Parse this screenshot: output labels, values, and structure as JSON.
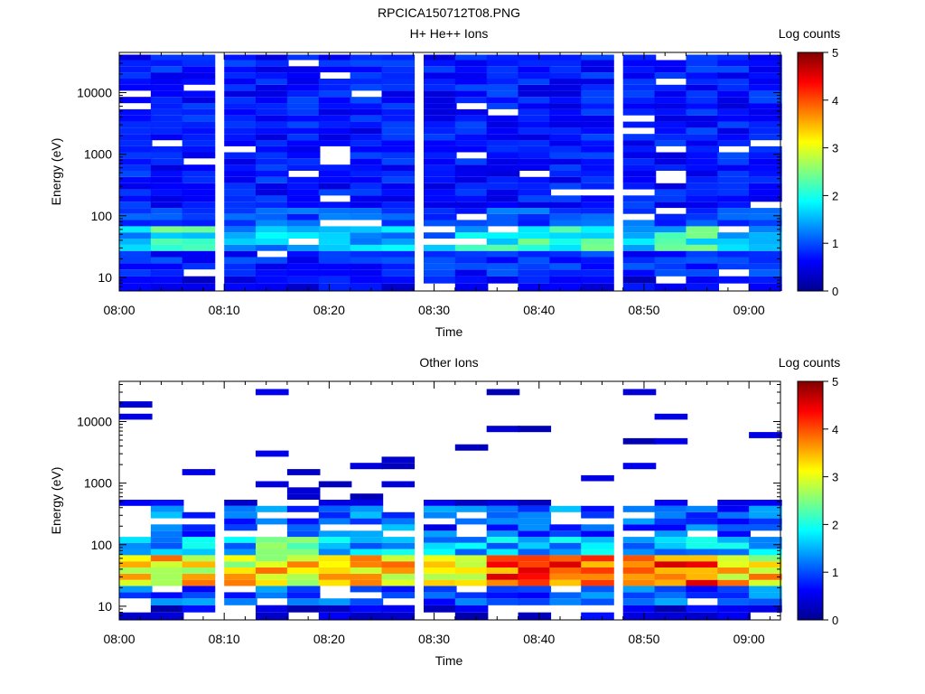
{
  "figure": {
    "title": "RPCICA150712T08.PNG"
  },
  "colorbar": {
    "label": "Log counts",
    "ticks": [
      "0",
      "1",
      "2",
      "3",
      "4",
      "5"
    ],
    "range": [
      0,
      5
    ]
  },
  "chart_data": [
    {
      "type": "heatmap",
      "title": "H+ He++ Ions",
      "xlabel": "Time",
      "ylabel": "Energy (eV)",
      "yscale": "log",
      "ylim": [
        6,
        45000
      ],
      "xlim": [
        "08:00",
        "09:03"
      ],
      "xticks": [
        "08:00",
        "08:10",
        "08:20",
        "08:30",
        "08:40",
        "08:50",
        "09:00"
      ],
      "yticks": [
        "10",
        "100",
        "1000",
        "10000"
      ],
      "columns": [
        "08:00",
        "08:03",
        "08:06",
        "08:10",
        "08:13",
        "08:16",
        "08:19",
        "08:22",
        "08:25",
        "08:29",
        "08:32",
        "08:35",
        "08:38",
        "08:41",
        "08:44",
        "08:48",
        "08:51",
        "08:54",
        "08:57",
        "09:00"
      ],
      "bins": [
        7,
        9,
        12,
        15,
        19,
        24,
        30,
        38,
        48,
        60,
        76,
        96,
        120,
        150,
        190,
        240,
        300,
        380,
        480,
        600,
        760,
        960,
        1200,
        1500,
        1900,
        2400,
        3000,
        3800,
        4800,
        6000,
        7600,
        9600,
        12000,
        15000,
        19000,
        24000,
        30000,
        38000
      ],
      "description_of_values": "log10 counts per time/energy bin (0-5); null = no data (white)",
      "z_summary": {
        "low_band_6_25eV": "mostly 0.3-0.9 with white gaps",
        "peak_30_60eV": "1.3-2.6, strongest near 08:02, 08:07, 08:36-08:50",
        "above_100eV": "background 0.4-0.9"
      }
    },
    {
      "type": "heatmap",
      "title": "Other Ions",
      "xlabel": "Time",
      "ylabel": "Energy (eV)",
      "yscale": "log",
      "ylim": [
        6,
        45000
      ],
      "xlim": [
        "08:00",
        "09:03"
      ],
      "xticks": [
        "08:00",
        "08:10",
        "08:20",
        "08:30",
        "08:40",
        "08:50",
        "09:00"
      ],
      "yticks": [
        "10",
        "100",
        "1000",
        "10000"
      ],
      "columns": [
        "08:00",
        "08:03",
        "08:06",
        "08:10",
        "08:13",
        "08:16",
        "08:19",
        "08:22",
        "08:25",
        "08:29",
        "08:32",
        "08:35",
        "08:38",
        "08:41",
        "08:44",
        "08:48",
        "08:51",
        "08:54",
        "08:57",
        "09:00"
      ],
      "description_of_values": "log10 counts; sparse above ~500 eV; peak 30-60 eV",
      "z_summary": {
        "peak_30_60eV": "3.0-4.6, maximum ~4.6 near 08:38-08:46",
        "mid_band_100_400eV": "0.5-2.5, enhanced 08:13-08:16",
        "high_energy": "isolated single counts ~0.1-0.4"
      }
    }
  ]
}
